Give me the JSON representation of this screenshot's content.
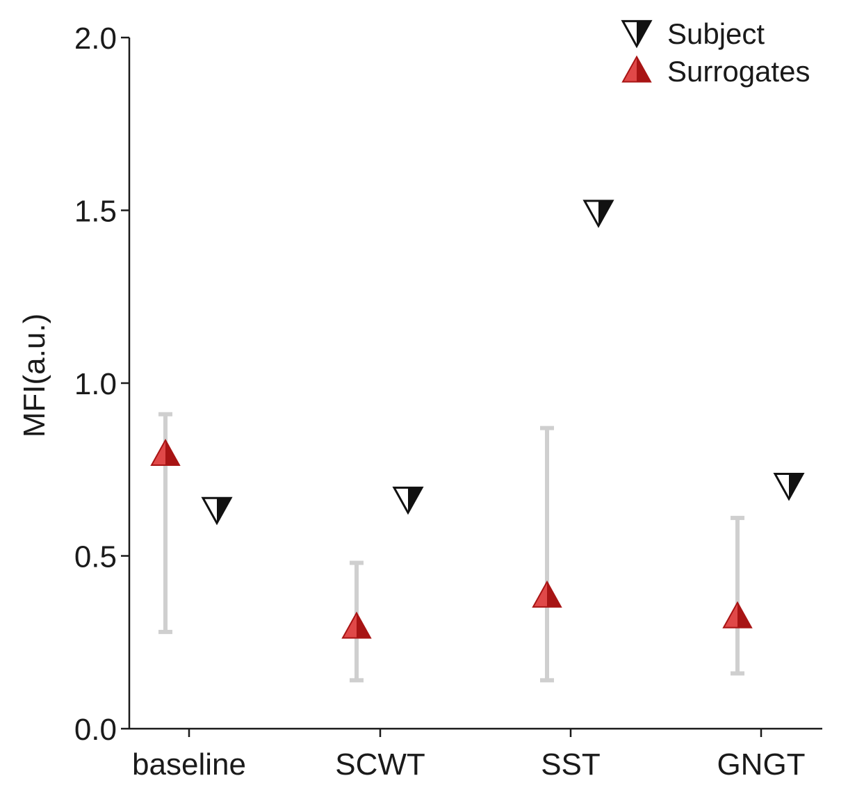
{
  "chart_data": {
    "type": "scatter",
    "title": "",
    "xlabel": "",
    "ylabel": "MFI(a.u.)",
    "ylim": [
      0,
      2
    ],
    "yticks": [
      "0.0",
      "0.5",
      "1.0",
      "1.5",
      "2.0"
    ],
    "categories": [
      "baseline",
      "SCWT",
      "SST",
      "GNGT"
    ],
    "legend_position": "top-right",
    "series": [
      {
        "name": "Subject",
        "marker": "down-triangle-half",
        "values": [
          0.64,
          0.67,
          1.5,
          0.71
        ]
      },
      {
        "name": "Surrogates",
        "marker": "up-triangle",
        "values": [
          0.79,
          0.29,
          0.38,
          0.32
        ],
        "error_low": [
          0.28,
          0.14,
          0.14,
          0.16
        ],
        "error_high": [
          0.91,
          0.48,
          0.87,
          0.61
        ]
      }
    ],
    "colors": {
      "surrogate_fill": "#e04848",
      "surrogate_dark": "#a81414",
      "subject_fill": "#ffffff",
      "subject_dark": "#111111",
      "errorbar": "#cfcfcf",
      "axis": "#1a1a1a"
    }
  }
}
